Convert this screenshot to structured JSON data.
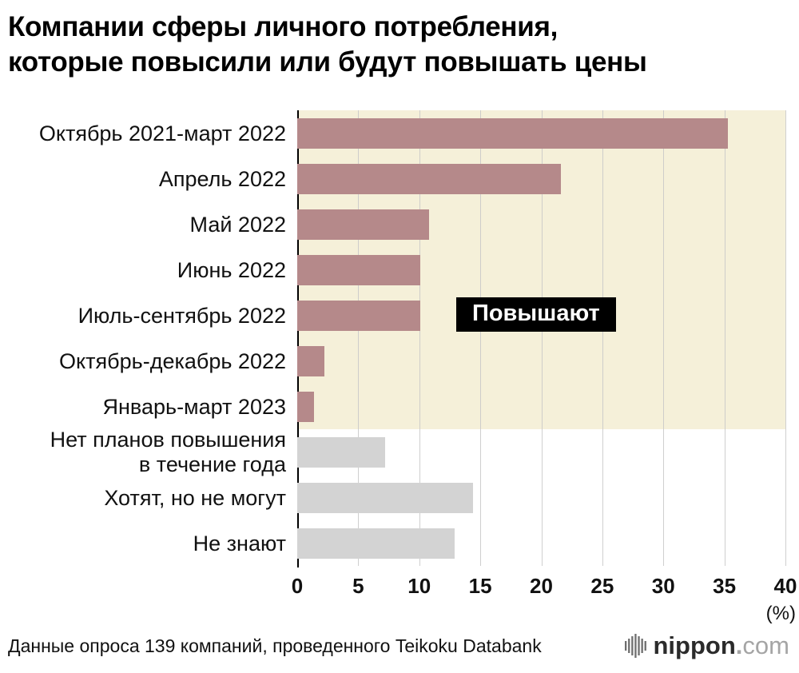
{
  "title": "Компании сферы личного потребления,\nкоторые повысили или будут повышать цены",
  "chart_data": {
    "type": "bar",
    "orientation": "horizontal",
    "title": "Компании сферы личного потребления, которые повысили или будут повышать цены",
    "categories": [
      "Октябрь 2021-март 2022",
      "Апрель 2022",
      "Май 2022",
      "Июнь 2022",
      "Июль-сентябрь 2022",
      "Октябрь-декабрь 2022",
      "Январь-март 2023",
      "Нет планов повышения\nв течение года",
      "Хотят, но не могут",
      "Не знают"
    ],
    "values": [
      35.3,
      21.6,
      10.8,
      10.1,
      10.1,
      2.2,
      1.4,
      7.2,
      14.4,
      12.9
    ],
    "highlight": {
      "label": "Повышают",
      "rows": 7
    },
    "xlim": [
      0,
      40
    ],
    "xticks": [
      0,
      5,
      10,
      15,
      20,
      25,
      30,
      35,
      40
    ],
    "x_unit": "(%)",
    "grid": true,
    "legend": "none"
  },
  "footer": {
    "source": "Данные опроса 139 компаний, проведенного Teikoku Databank",
    "logo": {
      "name": "nippon",
      "dot": ".",
      "tld": "com"
    }
  },
  "colors": {
    "bar_raise": "#b5898a",
    "bar_other": "#d3d3d3",
    "highlight_bg": "#f5f0d9",
    "badge_bg": "#000000",
    "badge_text": "#ffffff",
    "axis": "#000000",
    "grid": "#c7c7c7",
    "logo_gray": "#a5a5a5"
  }
}
